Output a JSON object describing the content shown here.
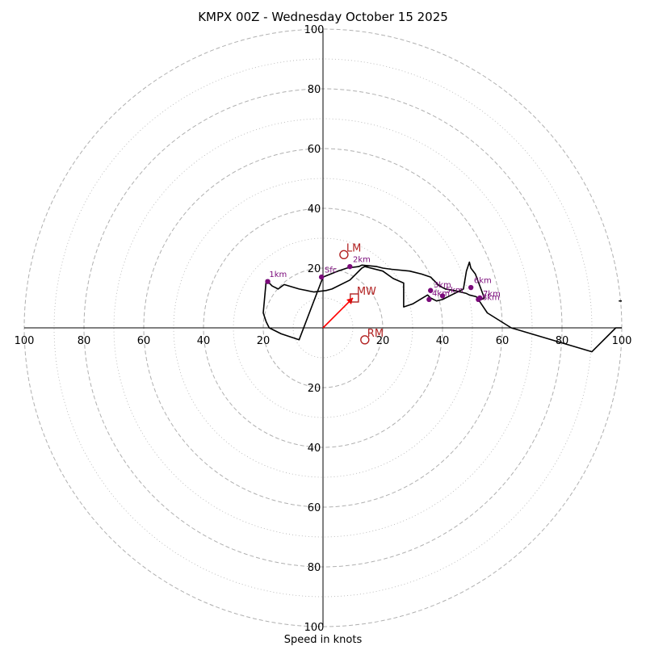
{
  "chart_data": {
    "type": "line",
    "title": "KMPX 00Z - Wednesday October 15 2025",
    "xlabel": "Speed in knots",
    "units": "knots",
    "axis_range": [
      -100,
      100
    ],
    "ring_interval_dashed": 20,
    "ring_interval_dotted": 10,
    "tick_labels": {
      "x": [
        "100",
        "80",
        "60",
        "40",
        "20",
        "20",
        "40",
        "60",
        "80",
        "100"
      ],
      "y": [
        "100",
        "80",
        "60",
        "40",
        "20",
        "20",
        "40",
        "60",
        "80",
        "100"
      ]
    },
    "colors": {
      "trace": "#000000",
      "height_marker": "#7a0a7a",
      "motion": "#b22222",
      "mean_wind_vector": "#ff0000",
      "grid": "#b0b0b0"
    },
    "hodograph": {
      "u": [
        0,
        5,
        8,
        12,
        13,
        18,
        20,
        23,
        29,
        33,
        36,
        37,
        38,
        39,
        41,
        44,
        46,
        48,
        49,
        51,
        52,
        53,
        54,
        51,
        49.5,
        49,
        48,
        47,
        45,
        43,
        40,
        38,
        36,
        35,
        30,
        27,
        27,
        23.5,
        20,
        14,
        13,
        11,
        9,
        3,
        1,
        -3,
        -8,
        -13,
        -15,
        -17,
        -19,
        -20,
        -19,
        -18,
        -14,
        -8,
        0
      ],
      "v": [
        17,
        19,
        20,
        20.5,
        21,
        20.5,
        20,
        19.6,
        19,
        18,
        17,
        16,
        15,
        14,
        13,
        12.5,
        12,
        11.5,
        11,
        10.5,
        10,
        9.5,
        10,
        18,
        20,
        22,
        19,
        13,
        12,
        11,
        9.5,
        9,
        10,
        11,
        8,
        7,
        15,
        16.5,
        19,
        20.5,
        20,
        18,
        16,
        13,
        12.5,
        12,
        13,
        14.5,
        13,
        14,
        16,
        5,
        2,
        0,
        -2,
        -4,
        17
      ]
    },
    "height_markers": [
      {
        "label": "Sfc",
        "u": -0.5,
        "v": 17,
        "label_du": 1,
        "label_dv": 1.5
      },
      {
        "label": "1km",
        "u": -18.5,
        "v": 15.5,
        "label_du": 0.5,
        "label_dv": 1.5
      },
      {
        "label": "2km",
        "u": 9,
        "v": 20.5,
        "label_du": 1,
        "label_dv": 1.5
      },
      {
        "label": "3km",
        "u": 36,
        "v": 12.5,
        "label_du": 1,
        "label_dv": 1
      },
      {
        "label": "4km",
        "u": 35.5,
        "v": 9.5,
        "label_du": 1,
        "label_dv": 1.2
      },
      {
        "label": "5km",
        "u": 40,
        "v": 10.7,
        "label_du": 1,
        "label_dv": 1
      },
      {
        "label": "6km",
        "u": 49.5,
        "v": 13.5,
        "label_du": 1,
        "label_dv": 1.5
      },
      {
        "label": "7km",
        "u": 52.5,
        "v": 10,
        "label_du": 1,
        "label_dv": 0.5
      },
      {
        "label": "8km",
        "u": 52,
        "v": 9.5,
        "label_du": 1.2,
        "label_dv": -0.2
      }
    ],
    "far_trace": {
      "u": [
        52,
        55,
        63,
        90,
        98,
        100
      ],
      "v": [
        9.5,
        5,
        0,
        -8,
        0,
        0
      ]
    },
    "far_segment": {
      "u": [
        99,
        100
      ],
      "v": [
        9,
        9
      ]
    },
    "storm_motion": [
      {
        "label": "LM",
        "u": 7,
        "v": 24.5,
        "marker": "circle"
      },
      {
        "label": "MW",
        "u": 10.5,
        "v": 10,
        "marker": "square"
      },
      {
        "label": "RM",
        "u": 14,
        "v": -4,
        "marker": "circle"
      }
    ],
    "mean_wind_vector": {
      "u": 10,
      "v": 10
    }
  }
}
